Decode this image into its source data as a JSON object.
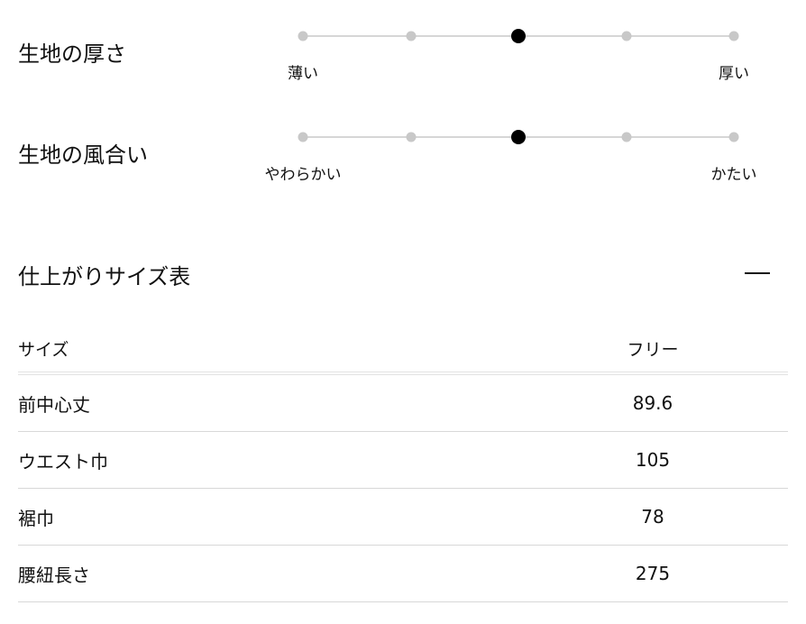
{
  "scales": [
    {
      "title": "生地の厚さ",
      "min_label": "薄い",
      "max_label": "厚い",
      "steps": 5,
      "selected_index": 2
    },
    {
      "title": "生地の風合い",
      "min_label": "やわらかい",
      "max_label": "かたい",
      "steps": 5,
      "selected_index": 2
    }
  ],
  "size_table": {
    "title": "仕上がりサイズ表",
    "collapse_icon": "minus-icon",
    "header": {
      "label": "サイズ",
      "value": "フリー"
    },
    "rows": [
      {
        "label": "前中心丈",
        "value": "89.6"
      },
      {
        "label": "ウエスト巾",
        "value": "105"
      },
      {
        "label": "裾巾",
        "value": "78"
      },
      {
        "label": "腰紐長さ",
        "value": "275"
      }
    ]
  }
}
